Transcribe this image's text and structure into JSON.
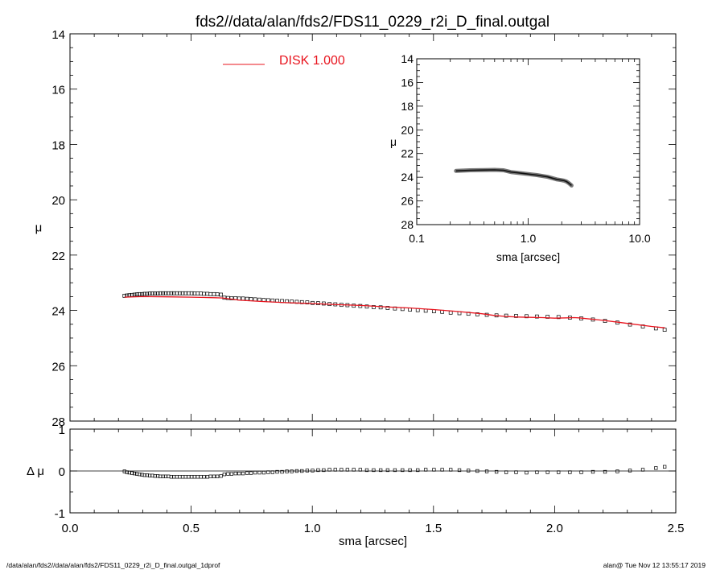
{
  "chart_data": [
    {
      "type": "scatter",
      "title": "fds2//data/alan/fds2/FDS11_0229_r2i_D_final.outgal",
      "xlabel": "sma [arcsec]",
      "ylabel": "μ",
      "xlim": [
        0.0,
        2.5
      ],
      "ylim": [
        28,
        14
      ],
      "y_inverted": true,
      "xticks": [
        "0.0",
        "0.5",
        "1.0",
        "1.5",
        "2.0",
        "2.5"
      ],
      "yticks": [
        "14",
        "16",
        "18",
        "20",
        "22",
        "24",
        "26",
        "28"
      ],
      "legend": {
        "placement": "top-center",
        "label": "DISK  1.000",
        "color": "#e8141e"
      },
      "series": [
        {
          "kind": "points",
          "marker": "open-square",
          "x": [
            0.225,
            0.235,
            0.245,
            0.256,
            0.266,
            0.276,
            0.287,
            0.297,
            0.308,
            0.318,
            0.329,
            0.34,
            0.351,
            0.362,
            0.373,
            0.384,
            0.395,
            0.406,
            0.418,
            0.429,
            0.441,
            0.453,
            0.465,
            0.477,
            0.489,
            0.502,
            0.514,
            0.527,
            0.54,
            0.553,
            0.567,
            0.58,
            0.594,
            0.608,
            0.623,
            0.637,
            0.652,
            0.667,
            0.683,
            0.698,
            0.714,
            0.731,
            0.747,
            0.764,
            0.782,
            0.8,
            0.818,
            0.836,
            0.855,
            0.875,
            0.895,
            0.915,
            0.936,
            0.957,
            0.979,
            1.001,
            1.024,
            1.047,
            1.071,
            1.095,
            1.12,
            1.145,
            1.171,
            1.198,
            1.225,
            1.253,
            1.282,
            1.311,
            1.341,
            1.372,
            1.403,
            1.435,
            1.468,
            1.502,
            1.536,
            1.571,
            1.607,
            1.644,
            1.681,
            1.72,
            1.76,
            1.8,
            1.841,
            1.884,
            1.927,
            1.971,
            2.016,
            2.063,
            2.11,
            2.158,
            2.208,
            2.259,
            2.311,
            2.364,
            2.418,
            2.454
          ],
          "y": [
            23.47,
            23.46,
            23.45,
            23.44,
            23.43,
            23.42,
            23.41,
            23.41,
            23.4,
            23.4,
            23.39,
            23.39,
            23.39,
            23.39,
            23.38,
            23.38,
            23.38,
            23.38,
            23.38,
            23.38,
            23.38,
            23.38,
            23.38,
            23.38,
            23.38,
            23.38,
            23.39,
            23.39,
            23.39,
            23.4,
            23.4,
            23.41,
            23.41,
            23.42,
            23.43,
            23.54,
            23.55,
            23.56,
            23.56,
            23.57,
            23.57,
            23.58,
            23.59,
            23.6,
            23.61,
            23.62,
            23.63,
            23.64,
            23.65,
            23.66,
            23.67,
            23.68,
            23.69,
            23.7,
            23.71,
            23.73,
            23.74,
            23.75,
            23.77,
            23.78,
            23.8,
            23.81,
            23.83,
            23.84,
            23.86,
            23.88,
            23.89,
            23.91,
            23.93,
            23.95,
            23.97,
            23.99,
            24.01,
            24.03,
            24.05,
            24.08,
            24.1,
            24.12,
            24.14,
            24.16,
            24.18,
            24.19,
            24.2,
            24.21,
            24.22,
            24.23,
            24.24,
            24.26,
            24.29,
            24.33,
            24.38,
            24.44,
            24.51,
            24.58,
            24.65,
            24.7
          ]
        },
        {
          "kind": "line",
          "name": "DISK  1.000",
          "color": "#e8141e",
          "x": [
            0.225,
            0.3,
            0.4,
            0.5,
            0.6,
            0.63,
            0.7,
            0.8,
            0.9,
            1.0,
            1.1,
            1.2,
            1.3,
            1.4,
            1.5,
            1.6,
            1.7,
            1.75,
            1.8,
            1.85,
            1.9,
            1.95,
            2.0,
            2.05,
            2.08,
            2.1,
            2.2,
            2.3,
            2.4,
            2.455
          ],
          "y": [
            23.52,
            23.5,
            23.51,
            23.52,
            23.54,
            23.55,
            23.63,
            23.68,
            23.72,
            23.75,
            23.79,
            23.82,
            23.87,
            23.91,
            23.97,
            24.04,
            24.12,
            24.18,
            24.22,
            24.24,
            24.25,
            24.26,
            24.28,
            24.27,
            24.26,
            24.27,
            24.36,
            24.47,
            24.58,
            24.63
          ]
        }
      ]
    },
    {
      "type": "line",
      "inset": true,
      "xlabel": "sma [arcsec]",
      "ylabel": "μ",
      "x_scale": "log",
      "xlim": [
        0.1,
        10.0
      ],
      "ylim": [
        28,
        14
      ],
      "y_inverted": true,
      "xticks": [
        "0.1",
        "1.0",
        "10.0"
      ],
      "yticks": [
        "14",
        "16",
        "18",
        "20",
        "22",
        "24",
        "26",
        "28"
      ],
      "series": [
        {
          "kind": "band",
          "color": "#000000",
          "x": [
            0.225,
            0.3,
            0.4,
            0.5,
            0.6,
            0.7,
            0.8,
            1.0,
            1.2,
            1.5,
            1.8,
            2.0,
            2.1,
            2.2,
            2.3,
            2.4,
            2.45
          ],
          "y": [
            23.47,
            23.41,
            23.39,
            23.38,
            23.41,
            23.56,
            23.62,
            23.73,
            23.82,
            23.97,
            24.18,
            24.25,
            24.29,
            24.36,
            24.48,
            24.62,
            24.7
          ]
        }
      ]
    },
    {
      "type": "scatter",
      "residual": true,
      "xlabel": "sma [arcsec]",
      "ylabel": "Δ μ",
      "xlim": [
        0.0,
        2.5
      ],
      "ylim": [
        -1,
        1
      ],
      "xticks": [
        "0.0",
        "0.5",
        "1.0",
        "1.5",
        "2.0",
        "2.5"
      ],
      "yticks": [
        "1",
        "0",
        "-1"
      ],
      "series": [
        {
          "kind": "points",
          "marker": "open-square",
          "x": [
            0.225,
            0.235,
            0.245,
            0.256,
            0.266,
            0.276,
            0.287,
            0.297,
            0.308,
            0.318,
            0.329,
            0.34,
            0.351,
            0.362,
            0.373,
            0.384,
            0.395,
            0.406,
            0.418,
            0.429,
            0.441,
            0.453,
            0.465,
            0.477,
            0.489,
            0.502,
            0.514,
            0.527,
            0.54,
            0.553,
            0.567,
            0.58,
            0.594,
            0.608,
            0.623,
            0.637,
            0.652,
            0.667,
            0.683,
            0.698,
            0.714,
            0.731,
            0.747,
            0.764,
            0.782,
            0.8,
            0.818,
            0.836,
            0.855,
            0.875,
            0.895,
            0.915,
            0.936,
            0.957,
            0.979,
            1.001,
            1.024,
            1.047,
            1.071,
            1.095,
            1.12,
            1.145,
            1.171,
            1.198,
            1.225,
            1.253,
            1.282,
            1.311,
            1.341,
            1.372,
            1.403,
            1.435,
            1.468,
            1.502,
            1.536,
            1.571,
            1.607,
            1.644,
            1.681,
            1.72,
            1.76,
            1.8,
            1.841,
            1.884,
            1.927,
            1.971,
            2.016,
            2.063,
            2.11,
            2.158,
            2.208,
            2.259,
            2.311,
            2.364,
            2.418,
            2.454
          ],
          "y": [
            -0.01,
            -0.03,
            -0.04,
            -0.05,
            -0.06,
            -0.07,
            -0.08,
            -0.09,
            -0.1,
            -0.1,
            -0.11,
            -0.11,
            -0.12,
            -0.12,
            -0.13,
            -0.13,
            -0.13,
            -0.13,
            -0.14,
            -0.14,
            -0.14,
            -0.14,
            -0.14,
            -0.14,
            -0.14,
            -0.14,
            -0.14,
            -0.14,
            -0.14,
            -0.14,
            -0.14,
            -0.13,
            -0.13,
            -0.13,
            -0.12,
            -0.08,
            -0.07,
            -0.07,
            -0.06,
            -0.06,
            -0.06,
            -0.05,
            -0.05,
            -0.04,
            -0.04,
            -0.04,
            -0.03,
            -0.03,
            -0.02,
            -0.02,
            -0.01,
            -0.01,
            0.0,
            0.0,
            0.01,
            0.01,
            0.02,
            0.02,
            0.03,
            0.03,
            0.03,
            0.03,
            0.03,
            0.03,
            0.02,
            0.02,
            0.02,
            0.02,
            0.02,
            0.02,
            0.02,
            0.02,
            0.03,
            0.03,
            0.03,
            0.03,
            0.02,
            0.01,
            0.0,
            -0.01,
            -0.02,
            -0.03,
            -0.03,
            -0.04,
            -0.03,
            -0.03,
            -0.03,
            -0.03,
            -0.03,
            -0.02,
            -0.02,
            -0.01,
            0.01,
            0.03,
            0.07,
            0.1
          ]
        }
      ]
    }
  ],
  "footer": {
    "left": "/data/alan/fds2//data/alan/fds2/FDS11_0229_r2i_D_final.outgal_1dprof",
    "right": "alan@  Tue Nov 12 13:55:17 2019"
  }
}
